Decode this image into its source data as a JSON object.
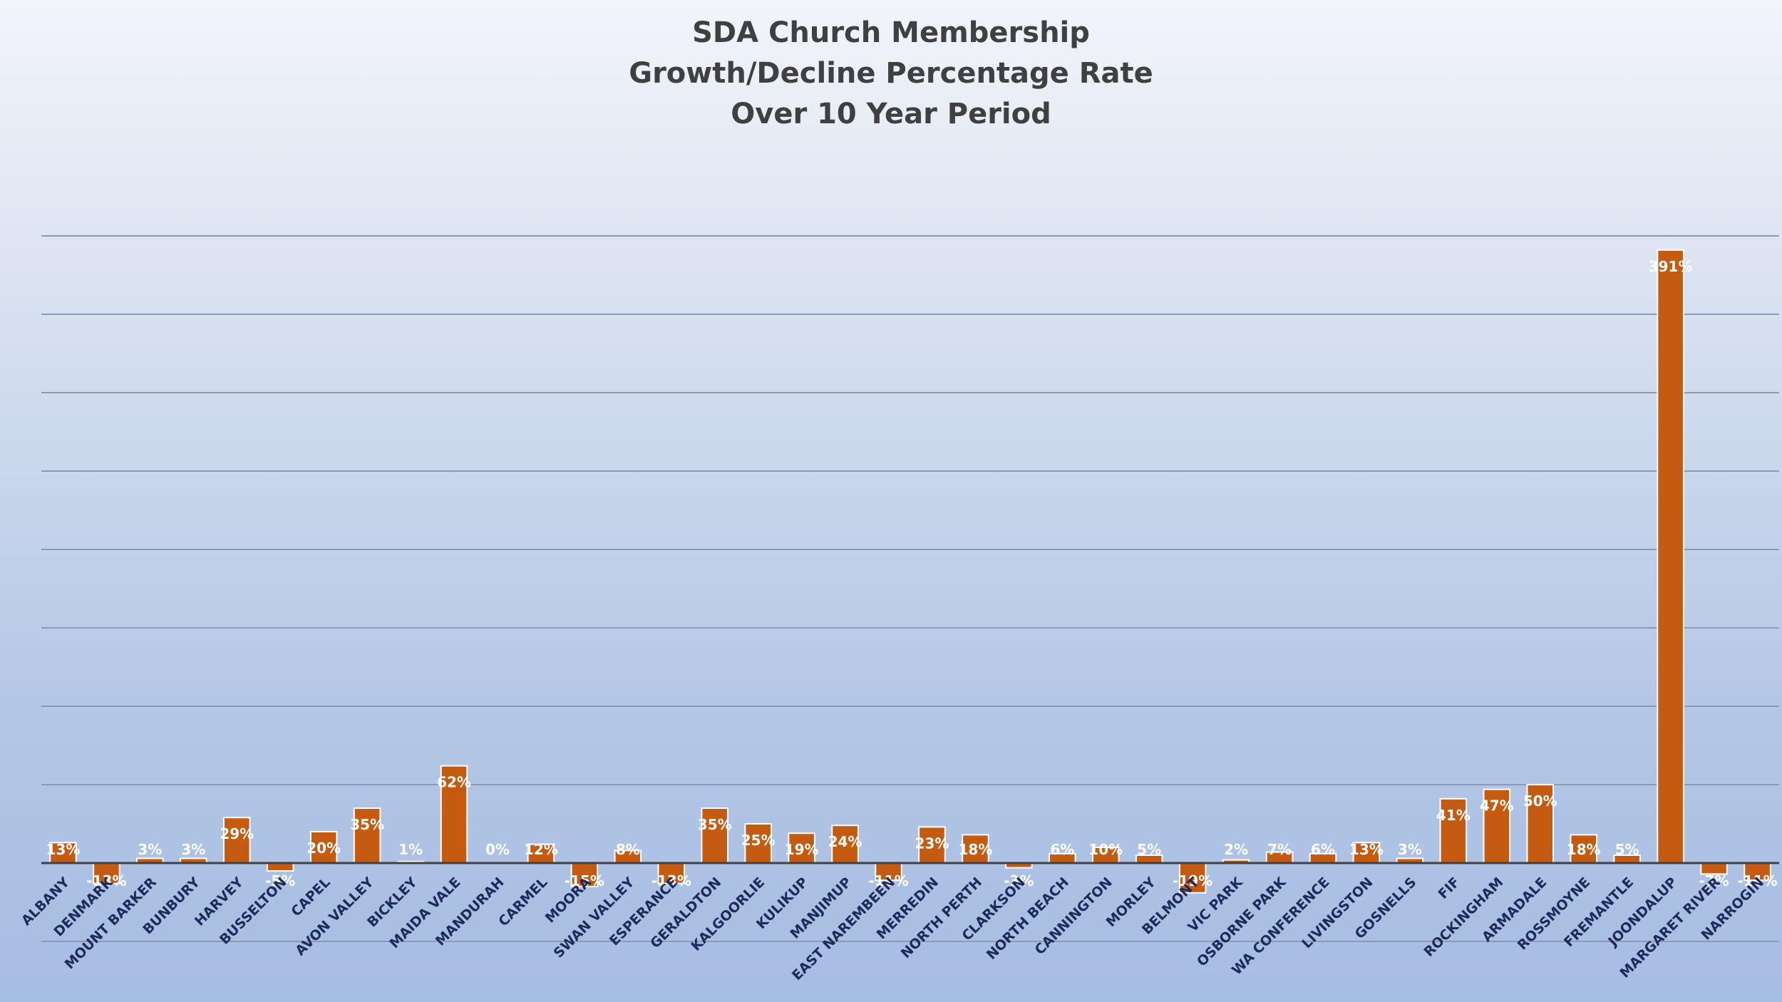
{
  "chart_data": {
    "type": "bar",
    "title_lines": [
      "SDA Church Membership",
      "Growth/Decline Percentage Rate",
      "Over 10 Year Period"
    ],
    "xlabel": "",
    "ylabel": "",
    "ylim": [
      -55,
      455
    ],
    "grid": true,
    "legend": "none",
    "bar_color": "#c55a11",
    "categories": [
      "ALBANY",
      "DENMARK",
      "MOUNT BARKER",
      "BUNBURY",
      "HARVEY",
      "BUSSELTON",
      "CAPEL",
      "AVON VALLEY",
      "BICKLEY",
      "MAIDA VALE",
      "MANDURAH",
      "CARMEL",
      "MOORA",
      "SWAN VALLEY",
      "ESPERANCE",
      "GERALDTON",
      "KALGOORLIE",
      "KULIKUP",
      "MANJIMUP",
      "EAST NAREMBEEN",
      "MERREDIN",
      "NORTH PERTH",
      "CLARKSON",
      "NORTH BEACH",
      "CANNINGTON",
      "MORLEY",
      "BELMONT",
      "VIC PARK",
      "OSBORNE PARK",
      "WA CONFERENCE",
      "LIVINGSTON",
      "GOSNELLS",
      "FIF",
      "ROCKINGHAM",
      "ARMADALE",
      "ROSSMOYNE",
      "FREMANTLE",
      "JOONDALUP",
      "MARGARET RIVER",
      "NARROGIN"
    ],
    "values": [
      13,
      -13,
      3,
      3,
      29,
      -5,
      20,
      35,
      1,
      62,
      0,
      12,
      -15,
      8,
      -13,
      35,
      25,
      19,
      24,
      -11,
      23,
      18,
      -3,
      6,
      10,
      5,
      -19,
      2,
      7,
      6,
      13,
      3,
      41,
      47,
      50,
      18,
      5,
      391,
      -7,
      -11
    ],
    "data_labels": [
      "13%",
      "-13%",
      "3%",
      "3%",
      "29%",
      "-5%",
      "20%",
      "35%",
      "1%",
      "62%",
      "0%",
      "12%",
      "-15%",
      "8%",
      "-13%",
      "35%",
      "25%",
      "19%",
      "24%",
      "-11%",
      "23%",
      "18%",
      "-3%",
      "6%",
      "10%",
      "5%",
      "-19%",
      "2%",
      "7%",
      "6%",
      "13%",
      "3%",
      "41%",
      "47%",
      "50%",
      "18%",
      "5%",
      "391%",
      "-7%",
      "-11%"
    ]
  }
}
